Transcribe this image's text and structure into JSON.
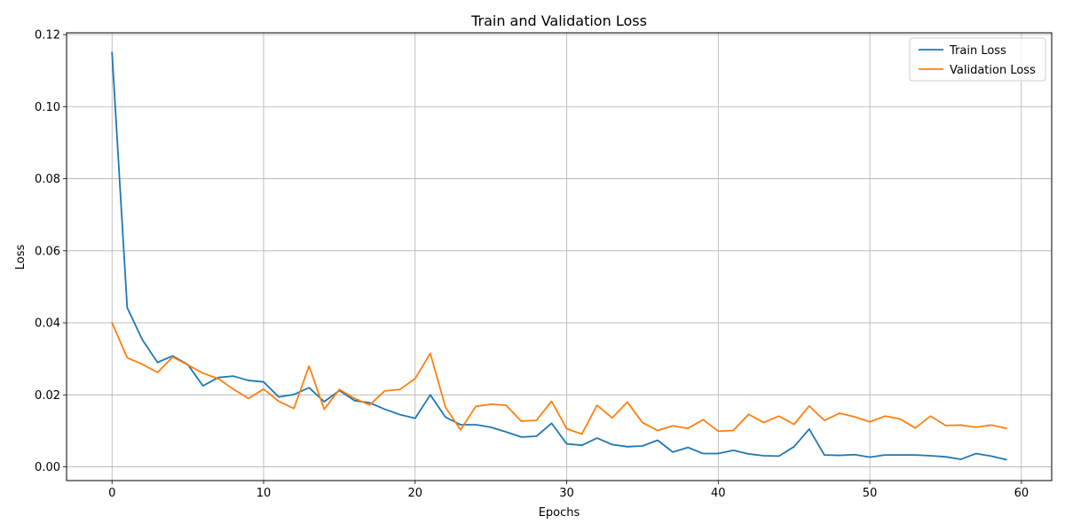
{
  "chart_data": {
    "type": "line",
    "title": "Train and Validation Loss",
    "xlabel": "Epochs",
    "ylabel": "Loss",
    "xlim": [
      -3,
      62
    ],
    "ylim": [
      -0.0038,
      0.1205
    ],
    "xticks": [
      0,
      10,
      20,
      30,
      40,
      50,
      60
    ],
    "yticks": [
      0.0,
      0.02,
      0.04,
      0.06,
      0.08,
      0.1,
      0.12
    ],
    "xtick_labels": [
      "0",
      "10",
      "20",
      "30",
      "40",
      "50",
      "60"
    ],
    "ytick_labels": [
      "0.00",
      "0.02",
      "0.04",
      "0.06",
      "0.08",
      "0.10",
      "0.12"
    ],
    "grid": true,
    "legend_position": "top-right",
    "series": [
      {
        "name": "Train Loss",
        "color": "#1f77b4",
        "x": [
          0,
          1,
          2,
          3,
          4,
          5,
          6,
          7,
          8,
          9,
          10,
          11,
          12,
          13,
          14,
          15,
          16,
          17,
          18,
          19,
          20,
          21,
          22,
          23,
          24,
          25,
          26,
          27,
          28,
          29,
          30,
          31,
          32,
          33,
          34,
          35,
          36,
          37,
          38,
          39,
          40,
          41,
          42,
          43,
          44,
          45,
          46,
          47,
          48,
          49,
          50,
          51,
          52,
          53,
          54,
          55,
          56,
          57,
          58,
          59
        ],
        "values": [
          0.115,
          0.0442,
          0.0353,
          0.029,
          0.0308,
          0.0284,
          0.0225,
          0.0248,
          0.0252,
          0.024,
          0.0236,
          0.0194,
          0.0201,
          0.022,
          0.0181,
          0.0212,
          0.0184,
          0.0178,
          0.016,
          0.0145,
          0.0135,
          0.02,
          0.0138,
          0.0117,
          0.0117,
          0.011,
          0.0097,
          0.0083,
          0.0085,
          0.0121,
          0.0064,
          0.006,
          0.008,
          0.0062,
          0.0056,
          0.0058,
          0.0074,
          0.0041,
          0.0054,
          0.0037,
          0.0037,
          0.0046,
          0.0036,
          0.0031,
          0.003,
          0.0056,
          0.0105,
          0.0033,
          0.0032,
          0.0034,
          0.0027,
          0.0033,
          0.0033,
          0.0033,
          0.0031,
          0.0028,
          0.0021,
          0.0037,
          0.003,
          0.002
        ]
      },
      {
        "name": "Validation Loss",
        "color": "#ff7f0e",
        "x": [
          0,
          1,
          2,
          3,
          4,
          5,
          6,
          7,
          8,
          9,
          10,
          11,
          12,
          13,
          14,
          15,
          16,
          17,
          18,
          19,
          20,
          21,
          22,
          23,
          24,
          25,
          26,
          27,
          28,
          29,
          30,
          31,
          32,
          33,
          34,
          35,
          36,
          37,
          38,
          39,
          40,
          41,
          42,
          43,
          44,
          45,
          46,
          47,
          48,
          49,
          50,
          51,
          52,
          53,
          54,
          55,
          56,
          57,
          58,
          59
        ],
        "values": [
          0.04,
          0.0303,
          0.0285,
          0.0262,
          0.0305,
          0.0283,
          0.026,
          0.0245,
          0.0216,
          0.019,
          0.0216,
          0.0182,
          0.0162,
          0.028,
          0.016,
          0.0215,
          0.019,
          0.0172,
          0.0211,
          0.0215,
          0.0245,
          0.0315,
          0.0166,
          0.0103,
          0.0168,
          0.0174,
          0.0171,
          0.0127,
          0.0129,
          0.0182,
          0.0106,
          0.0091,
          0.0171,
          0.0136,
          0.018,
          0.0123,
          0.0101,
          0.0114,
          0.0107,
          0.0131,
          0.0099,
          0.0101,
          0.0146,
          0.0123,
          0.0141,
          0.0118,
          0.0169,
          0.0129,
          0.0149,
          0.0139,
          0.0125,
          0.0141,
          0.0133,
          0.0108,
          0.0141,
          0.0115,
          0.0116,
          0.011,
          0.0116,
          0.0107
        ]
      }
    ]
  }
}
